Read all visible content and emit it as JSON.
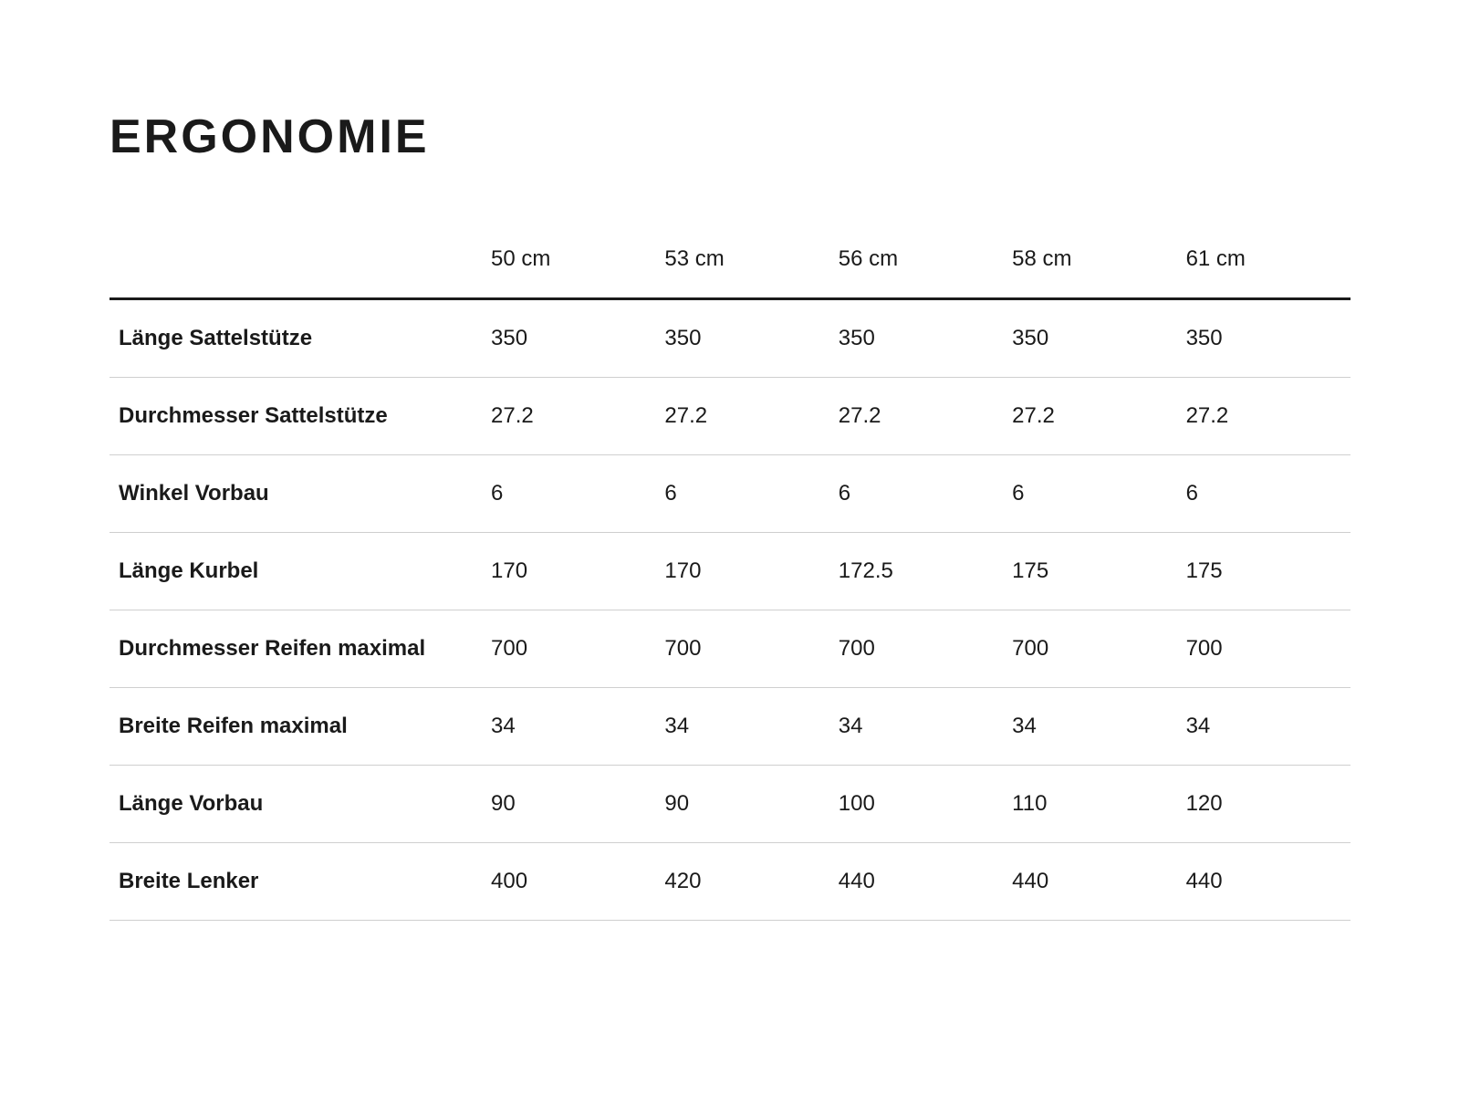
{
  "title": "ERGONOMIE",
  "table": {
    "columns": [
      "",
      "50 cm",
      "53 cm",
      "56 cm",
      "58 cm",
      "61 cm"
    ],
    "rows": [
      [
        "Länge Sattelstütze",
        "350",
        "350",
        "350",
        "350",
        "350"
      ],
      [
        "Durchmesser Sattelstütze",
        "27.2",
        "27.2",
        "27.2",
        "27.2",
        "27.2"
      ],
      [
        "Winkel Vorbau",
        "6",
        "6",
        "6",
        "6",
        "6"
      ],
      [
        "Länge Kurbel",
        "170",
        "170",
        "172.5",
        "175",
        "175"
      ],
      [
        "Durchmesser Reifen maximal",
        "700",
        "700",
        "700",
        "700",
        "700"
      ],
      [
        "Breite Reifen maximal",
        "34",
        "34",
        "34",
        "34",
        "34"
      ],
      [
        "Länge Vorbau",
        "90",
        "90",
        "100",
        "110",
        "120"
      ],
      [
        "Breite Lenker",
        "400",
        "420",
        "440",
        "440",
        "440"
      ]
    ],
    "style": {
      "background_color": "#ffffff",
      "text_color": "#1a1a1a",
      "header_border_color": "#1a1a1a",
      "row_border_color": "#cfcfcf",
      "title_fontsize": 52,
      "title_fontweight": 900,
      "header_fontsize": 24,
      "header_fontweight": 400,
      "cell_fontsize": 24,
      "row_label_fontweight": 700,
      "first_col_width_pct": 30,
      "data_col_width_pct": 14,
      "cell_padding_v": 28,
      "header_border_width": 3,
      "row_border_width": 1
    }
  }
}
